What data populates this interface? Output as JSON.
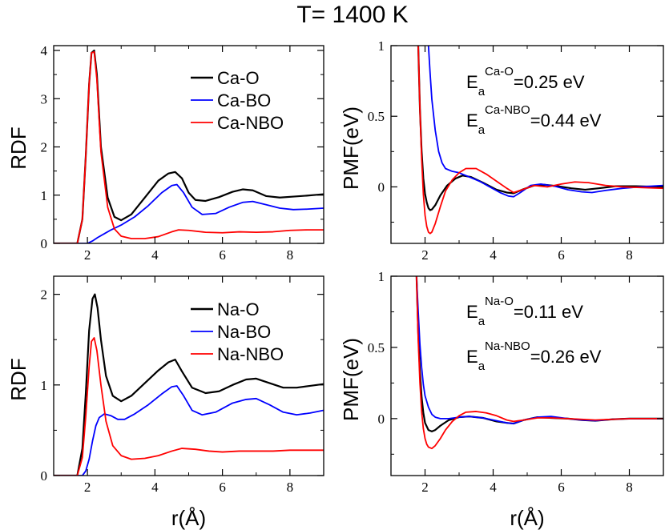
{
  "title": "T= 1400 K",
  "colors": {
    "black": "#000000",
    "blue": "#0000ff",
    "red": "#ff0000"
  },
  "chart_data": [
    {
      "id": "ca-rdf",
      "type": "line",
      "ylabel": "RDF",
      "xlabel": "",
      "xlim": [
        1,
        9
      ],
      "ylim": [
        0,
        4.1
      ],
      "xticks": [
        2,
        4,
        6,
        8
      ],
      "xtick_labels": [
        "2",
        "4",
        "6",
        "8"
      ],
      "yticks": [
        0,
        1,
        2,
        3,
        4
      ],
      "ytick_labels": [
        "0",
        "1",
        "2",
        "3",
        "4"
      ],
      "legend": "top-right",
      "series": [
        {
          "name": "Ca-O",
          "color": "#000000",
          "x": [
            1.0,
            1.7,
            1.85,
            1.95,
            2.05,
            2.12,
            2.2,
            2.28,
            2.4,
            2.6,
            2.8,
            3.0,
            3.3,
            3.7,
            4.1,
            4.4,
            4.6,
            4.8,
            5.0,
            5.2,
            5.5,
            5.9,
            6.3,
            6.6,
            6.9,
            7.3,
            7.7,
            8.1,
            8.5,
            9.0
          ],
          "y": [
            0.0,
            0.0,
            0.5,
            1.8,
            3.3,
            3.95,
            4.0,
            3.5,
            2.0,
            0.95,
            0.55,
            0.48,
            0.6,
            0.95,
            1.3,
            1.45,
            1.48,
            1.35,
            1.05,
            0.9,
            0.88,
            0.96,
            1.07,
            1.12,
            1.1,
            0.98,
            0.95,
            0.97,
            0.99,
            1.02
          ]
        },
        {
          "name": "Ca-BO",
          "color": "#0000ff",
          "x": [
            1.0,
            2.0,
            2.15,
            2.3,
            2.5,
            2.7,
            3.0,
            3.4,
            3.8,
            4.2,
            4.5,
            4.65,
            4.85,
            5.1,
            5.4,
            5.8,
            6.2,
            6.6,
            6.9,
            7.3,
            7.7,
            8.1,
            8.5,
            9.0
          ],
          "y": [
            0.0,
            0.0,
            0.05,
            0.12,
            0.2,
            0.28,
            0.38,
            0.55,
            0.78,
            1.05,
            1.2,
            1.22,
            1.05,
            0.75,
            0.6,
            0.62,
            0.75,
            0.85,
            0.87,
            0.8,
            0.73,
            0.7,
            0.71,
            0.73
          ]
        },
        {
          "name": "Ca-NBO",
          "color": "#ff0000",
          "x": [
            1.0,
            1.7,
            1.85,
            1.95,
            2.05,
            2.12,
            2.2,
            2.28,
            2.4,
            2.6,
            2.8,
            3.0,
            3.3,
            3.7,
            4.1,
            4.5,
            4.7,
            5.0,
            5.5,
            6.0,
            6.5,
            7.0,
            7.5,
            8.0,
            8.5,
            9.0
          ],
          "y": [
            0.0,
            0.0,
            0.5,
            1.8,
            3.3,
            3.95,
            3.97,
            3.4,
            1.9,
            0.75,
            0.3,
            0.15,
            0.1,
            0.1,
            0.14,
            0.24,
            0.28,
            0.27,
            0.23,
            0.22,
            0.24,
            0.23,
            0.24,
            0.27,
            0.28,
            0.28
          ]
        }
      ]
    },
    {
      "id": "ca-pmf",
      "type": "line",
      "ylabel": "PMF(eV)",
      "xlabel": "",
      "xlim": [
        1,
        9
      ],
      "ylim": [
        -0.4,
        1.0
      ],
      "xticks": [
        2,
        4,
        6,
        8
      ],
      "xtick_labels": [
        "2",
        "4",
        "6",
        "8"
      ],
      "yticks": [
        0,
        0.5,
        1
      ],
      "ytick_labels": [
        "0",
        "0.5",
        "1"
      ],
      "annotations": [
        {
          "E": "E",
          "sub": "a",
          "sup": "Ca-O",
          "value": "=0.25 eV"
        },
        {
          "E": "E",
          "sub": "a",
          "sup": "Ca-NBO",
          "value": "=0.44 eV"
        }
      ],
      "series": [
        {
          "name": "Ca-O",
          "color": "#000000",
          "x": [
            1.8,
            1.85,
            1.9,
            1.95,
            2.0,
            2.05,
            2.1,
            2.15,
            2.2,
            2.3,
            2.45,
            2.65,
            2.9,
            3.1,
            3.35,
            3.7,
            4.1,
            4.4,
            4.6,
            4.85,
            5.2,
            5.5,
            5.9,
            6.3,
            6.7,
            7.1,
            7.6,
            8.2,
            9.0
          ],
          "y": [
            1.0,
            0.55,
            0.25,
            0.06,
            -0.05,
            -0.11,
            -0.15,
            -0.165,
            -0.16,
            -0.13,
            -0.06,
            0.01,
            0.06,
            0.08,
            0.07,
            0.03,
            -0.02,
            -0.04,
            -0.045,
            -0.02,
            0.01,
            0.015,
            0.005,
            -0.01,
            -0.02,
            -0.01,
            0.005,
            0.005,
            0.0
          ]
        },
        {
          "name": "Ca-BO",
          "color": "#0000ff",
          "x": [
            2.1,
            2.15,
            2.2,
            2.3,
            2.4,
            2.5,
            2.6,
            2.8,
            3.0,
            3.3,
            3.6,
            3.9,
            4.2,
            4.45,
            4.6,
            4.8,
            5.1,
            5.4,
            5.8,
            6.2,
            6.6,
            6.9,
            7.3,
            7.8,
            8.3,
            9.0
          ],
          "y": [
            1.0,
            0.8,
            0.62,
            0.4,
            0.25,
            0.17,
            0.13,
            0.11,
            0.1,
            0.07,
            0.04,
            0.0,
            -0.04,
            -0.065,
            -0.07,
            -0.04,
            0.01,
            0.02,
            0.005,
            -0.02,
            -0.035,
            -0.04,
            -0.025,
            -0.01,
            0.0,
            0.01
          ]
        },
        {
          "name": "Ca-NBO",
          "color": "#ff0000",
          "x": [
            1.8,
            1.85,
            1.9,
            1.95,
            2.0,
            2.05,
            2.1,
            2.15,
            2.2,
            2.3,
            2.45,
            2.6,
            2.8,
            3.0,
            3.2,
            3.5,
            3.8,
            4.1,
            4.4,
            4.6,
            4.85,
            5.2,
            5.6,
            6.0,
            6.4,
            6.8,
            7.3,
            7.8,
            8.4,
            9.0
          ],
          "y": [
            1.0,
            0.55,
            0.2,
            -0.05,
            -0.2,
            -0.28,
            -0.32,
            -0.33,
            -0.32,
            -0.26,
            -0.14,
            -0.03,
            0.05,
            0.1,
            0.13,
            0.13,
            0.09,
            0.04,
            -0.01,
            -0.04,
            -0.02,
            0.01,
            0.0,
            0.02,
            0.035,
            0.03,
            0.01,
            0.0,
            -0.005,
            -0.01
          ]
        }
      ]
    },
    {
      "id": "na-rdf",
      "type": "line",
      "ylabel": "RDF",
      "xlabel": "r(Å)",
      "xlim": [
        1,
        9
      ],
      "ylim": [
        0,
        2.2
      ],
      "xticks": [
        2,
        4,
        6,
        8
      ],
      "xtick_labels": [
        "2",
        "4",
        "6",
        "8"
      ],
      "yticks": [
        0,
        1,
        2
      ],
      "ytick_labels": [
        "0",
        "1",
        "2"
      ],
      "legend": "top-right",
      "series": [
        {
          "name": "Na-O",
          "color": "#000000",
          "x": [
            1.0,
            1.7,
            1.85,
            1.95,
            2.05,
            2.15,
            2.22,
            2.3,
            2.4,
            2.55,
            2.75,
            3.0,
            3.3,
            3.7,
            4.1,
            4.4,
            4.6,
            4.8,
            5.1,
            5.5,
            5.9,
            6.3,
            6.7,
            7.0,
            7.4,
            7.8,
            8.2,
            8.6,
            9.0
          ],
          "y": [
            0.0,
            0.0,
            0.3,
            0.9,
            1.6,
            1.95,
            2.0,
            1.85,
            1.5,
            1.1,
            0.88,
            0.82,
            0.88,
            1.02,
            1.16,
            1.25,
            1.28,
            1.15,
            0.97,
            0.91,
            0.93,
            1.0,
            1.06,
            1.07,
            1.02,
            0.97,
            0.97,
            0.99,
            1.01
          ]
        },
        {
          "name": "Na-BO",
          "color": "#0000ff",
          "x": [
            1.0,
            1.85,
            1.95,
            2.05,
            2.15,
            2.25,
            2.35,
            2.5,
            2.7,
            2.9,
            3.1,
            3.4,
            3.8,
            4.2,
            4.5,
            4.65,
            4.85,
            5.1,
            5.4,
            5.8,
            6.3,
            6.7,
            7.0,
            7.4,
            7.8,
            8.2,
            8.6,
            9.0
          ],
          "y": [
            0.0,
            0.0,
            0.05,
            0.18,
            0.38,
            0.55,
            0.64,
            0.68,
            0.66,
            0.62,
            0.62,
            0.68,
            0.78,
            0.9,
            0.98,
            0.99,
            0.88,
            0.72,
            0.67,
            0.7,
            0.8,
            0.84,
            0.85,
            0.78,
            0.7,
            0.67,
            0.69,
            0.72
          ]
        },
        {
          "name": "Na-NBO",
          "color": "#ff0000",
          "x": [
            1.0,
            1.7,
            1.85,
            1.95,
            2.05,
            2.12,
            2.2,
            2.28,
            2.4,
            2.55,
            2.75,
            3.0,
            3.3,
            3.7,
            4.1,
            4.5,
            4.8,
            5.2,
            5.6,
            6.0,
            6.5,
            7.0,
            7.5,
            8.0,
            8.5,
            9.0
          ],
          "y": [
            0.0,
            0.0,
            0.2,
            0.65,
            1.2,
            1.48,
            1.52,
            1.38,
            1.0,
            0.6,
            0.33,
            0.22,
            0.18,
            0.19,
            0.22,
            0.27,
            0.3,
            0.29,
            0.27,
            0.26,
            0.27,
            0.27,
            0.27,
            0.28,
            0.28,
            0.28
          ]
        }
      ]
    },
    {
      "id": "na-pmf",
      "type": "line",
      "ylabel": "PMF(eV)",
      "xlabel": "r(Å)",
      "xlim": [
        1,
        9
      ],
      "ylim": [
        -0.4,
        1.0
      ],
      "xticks": [
        2,
        4,
        6,
        8
      ],
      "xtick_labels": [
        "2",
        "4",
        "6",
        "8"
      ],
      "yticks": [
        0,
        0.5,
        1
      ],
      "ytick_labels": [
        "0",
        "0.5",
        "1"
      ],
      "annotations": [
        {
          "E": "E",
          "sub": "a",
          "sup": "Na-O",
          "value": "=0.11 eV"
        },
        {
          "E": "E",
          "sub": "a",
          "sup": "Na-NBO",
          "value": "=0.26 eV"
        }
      ],
      "series": [
        {
          "name": "Na-O",
          "color": "#000000",
          "x": [
            1.75,
            1.8,
            1.85,
            1.9,
            1.95,
            2.0,
            2.1,
            2.2,
            2.3,
            2.45,
            2.7,
            3.0,
            3.3,
            3.7,
            4.1,
            4.4,
            4.6,
            4.9,
            5.3,
            5.7,
            6.2,
            6.6,
            7.0,
            7.5,
            8.0,
            8.5,
            9.0
          ],
          "y": [
            1.0,
            0.6,
            0.33,
            0.15,
            0.04,
            -0.03,
            -0.08,
            -0.09,
            -0.08,
            -0.05,
            -0.01,
            0.01,
            0.015,
            0.005,
            -0.02,
            -0.03,
            -0.035,
            -0.01,
            0.01,
            0.005,
            0.0,
            -0.01,
            -0.015,
            -0.005,
            0.0,
            0.0,
            0.0
          ]
        },
        {
          "name": "Na-BO",
          "color": "#0000ff",
          "x": [
            1.75,
            1.8,
            1.85,
            1.9,
            1.95,
            2.0,
            2.1,
            2.2,
            2.3,
            2.45,
            2.7,
            3.0,
            3.3,
            3.7,
            4.1,
            4.4,
            4.6,
            4.9,
            5.3,
            5.7,
            6.2,
            6.6,
            7.0,
            7.5,
            8.0,
            8.5,
            9.0
          ],
          "y": [
            1.0,
            0.75,
            0.52,
            0.36,
            0.24,
            0.16,
            0.08,
            0.03,
            0.01,
            0.0,
            0.0,
            0.01,
            0.015,
            0.005,
            -0.015,
            -0.03,
            -0.035,
            -0.01,
            0.01,
            0.015,
            0.0,
            -0.01,
            -0.015,
            -0.005,
            0.0,
            0.0,
            0.0
          ]
        },
        {
          "name": "Na-NBO",
          "color": "#ff0000",
          "x": [
            1.75,
            1.8,
            1.85,
            1.9,
            1.95,
            2.0,
            2.05,
            2.1,
            2.2,
            2.3,
            2.45,
            2.6,
            2.8,
            3.0,
            3.2,
            3.5,
            3.8,
            4.1,
            4.4,
            4.6,
            4.9,
            5.3,
            5.7,
            6.2,
            6.6,
            7.0,
            7.5,
            8.0,
            8.5,
            9.0
          ],
          "y": [
            1.0,
            0.55,
            0.25,
            0.05,
            -0.07,
            -0.14,
            -0.18,
            -0.2,
            -0.21,
            -0.19,
            -0.14,
            -0.08,
            -0.02,
            0.02,
            0.045,
            0.05,
            0.04,
            0.02,
            -0.01,
            -0.02,
            -0.01,
            0.005,
            0.005,
            0.0,
            -0.005,
            -0.01,
            -0.005,
            0.0,
            0.0,
            0.0
          ]
        }
      ]
    }
  ]
}
